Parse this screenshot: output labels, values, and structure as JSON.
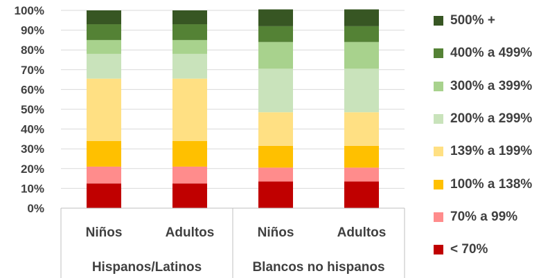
{
  "chart_data": {
    "type": "bar",
    "stacked": true,
    "percent_stacked": true,
    "title": "",
    "xlabel": "",
    "ylabel": "",
    "ylim": [
      0,
      100
    ],
    "y_ticks": [
      "0%",
      "10%",
      "20%",
      "30%",
      "40%",
      "50%",
      "60%",
      "70%",
      "80%",
      "90%",
      "100%"
    ],
    "categories": [
      "Niños",
      "Adultos",
      "Niños",
      "Adultos"
    ],
    "groups": [
      {
        "label": "Hispanos/Latinos",
        "categories": [
          "Niños",
          "Adultos"
        ]
      },
      {
        "label": "Blancos no hispanos",
        "categories": [
          "Niños",
          "Adultos"
        ]
      }
    ],
    "grid": true,
    "legend_position": "right",
    "series": [
      {
        "name": "< 70%",
        "color": "#c00000",
        "values": [
          12.5,
          12.5,
          13.5,
          13.5
        ]
      },
      {
        "name": "70% a 99%",
        "color": "#ff8c8c",
        "values": [
          8.5,
          8.5,
          7,
          7
        ]
      },
      {
        "name": "100% a 138%",
        "color": "#ffc000",
        "values": [
          13,
          13,
          11,
          11
        ]
      },
      {
        "name": "139% a 199%",
        "color": "#ffe083",
        "values": [
          31.5,
          31.5,
          17,
          17
        ]
      },
      {
        "name": "200% a 299%",
        "color": "#c9e3bb",
        "values": [
          12.5,
          12.5,
          22,
          22
        ]
      },
      {
        "name": "300% a 399%",
        "color": "#a8d28d",
        "values": [
          7,
          7,
          13.5,
          13.5
        ]
      },
      {
        "name": "400% a 499%",
        "color": "#548235",
        "values": [
          8,
          8,
          8,
          8
        ]
      },
      {
        "name": "500% +",
        "color": "#375623",
        "values": [
          7,
          7,
          8.5,
          8.5
        ]
      }
    ]
  }
}
